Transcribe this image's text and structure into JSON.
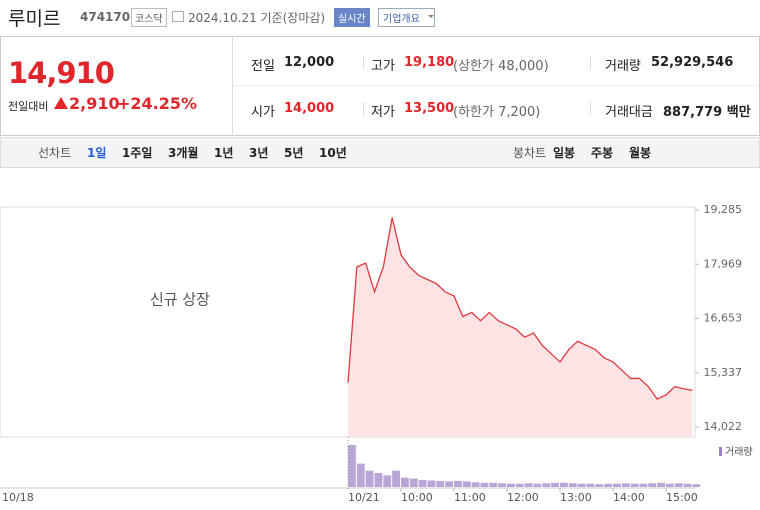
{
  "header": {
    "name": "루미르",
    "code": "474170",
    "market": "코스닥",
    "date": "2024.10.21 기준(장마감)",
    "realtime": "실시간",
    "company_info": "기업개요"
  },
  "quote": {
    "price": "14,910",
    "change_label": "전일대비",
    "change": "2,910",
    "change_pct": "+24.25%",
    "stats": [
      {
        "label": "전일",
        "value": "12,000"
      },
      {
        "label": "고가",
        "value": "19,180",
        "note": "(상한가 48,000)"
      },
      {
        "label": "거래량",
        "value": "52,929,546"
      },
      {
        "label": "시가",
        "value": "14,000"
      },
      {
        "label": "저가",
        "value": "13,500",
        "note": "(하한가 7,200)"
      },
      {
        "label": "거래대금",
        "value": "887,779 백만"
      }
    ]
  },
  "line_tabs": {
    "label": "선차트",
    "items": [
      "1일",
      "1주일",
      "3개월",
      "1년",
      "3년",
      "5년",
      "10년"
    ]
  },
  "candle_tabs": {
    "label": "봉차트",
    "items": [
      "일봉",
      "주봉",
      "월봉"
    ]
  },
  "chart_data": {
    "type": "line",
    "annotation": "신규 상장",
    "days": [
      "10/18",
      "10/21"
    ],
    "x": [
      "09:00",
      "09:10",
      "09:20",
      "09:30",
      "09:40",
      "09:50",
      "10:00",
      "10:10",
      "10:20",
      "10:30",
      "10:40",
      "10:50",
      "11:00",
      "11:10",
      "11:20",
      "11:30",
      "11:40",
      "11:50",
      "12:00",
      "12:10",
      "12:20",
      "12:30",
      "12:40",
      "12:50",
      "13:00",
      "13:10",
      "13:20",
      "13:30",
      "13:40",
      "13:50",
      "14:00",
      "14:10",
      "14:20",
      "14:30",
      "14:40",
      "14:50",
      "15:00",
      "15:10",
      "15:20",
      "15:30"
    ],
    "series": [
      {
        "color": "#e0393e",
        "values": [
          15100,
          17900,
          18000,
          17300,
          17900,
          19100,
          18200,
          17900,
          17700,
          17600,
          17500,
          17300,
          17200,
          16700,
          16800,
          16600,
          16800,
          16600,
          16500,
          16400,
          16200,
          16300,
          16000,
          15800,
          15600,
          15900,
          16100,
          16000,
          15900,
          15700,
          15600,
          15400,
          15200,
          15200,
          15000,
          14700,
          14800,
          15000,
          14950,
          14910
        ]
      },
      {
        "name": "거래량",
        "color": "#9b7fc4",
        "values": [
          9000000,
          5000000,
          3500000,
          3000000,
          2500000,
          3500000,
          2000000,
          1800000,
          1500000,
          1400000,
          1300000,
          1200000,
          1300000,
          1200000,
          1000000,
          900000,
          900000,
          800000,
          700000,
          700000,
          800000,
          700000,
          800000,
          900000,
          900000,
          800000,
          700000,
          700000,
          600000,
          700000,
          700000,
          800000,
          700000,
          700000,
          800000,
          900000,
          700000,
          800000,
          700000,
          600000
        ]
      }
    ],
    "ylim": [
      14022,
      19285
    ],
    "yticks": [
      {
        "value": 14022,
        "label": "14,022"
      },
      {
        "value": 15337,
        "label": "15,337"
      },
      {
        "value": 16653,
        "label": "16,653"
      },
      {
        "value": 17969,
        "label": "17,969"
      },
      {
        "value": 19285,
        "label": "19,285"
      }
    ],
    "xticks": [
      "10:00",
      "11:00",
      "12:00",
      "13:00",
      "14:00",
      "15:00"
    ]
  }
}
